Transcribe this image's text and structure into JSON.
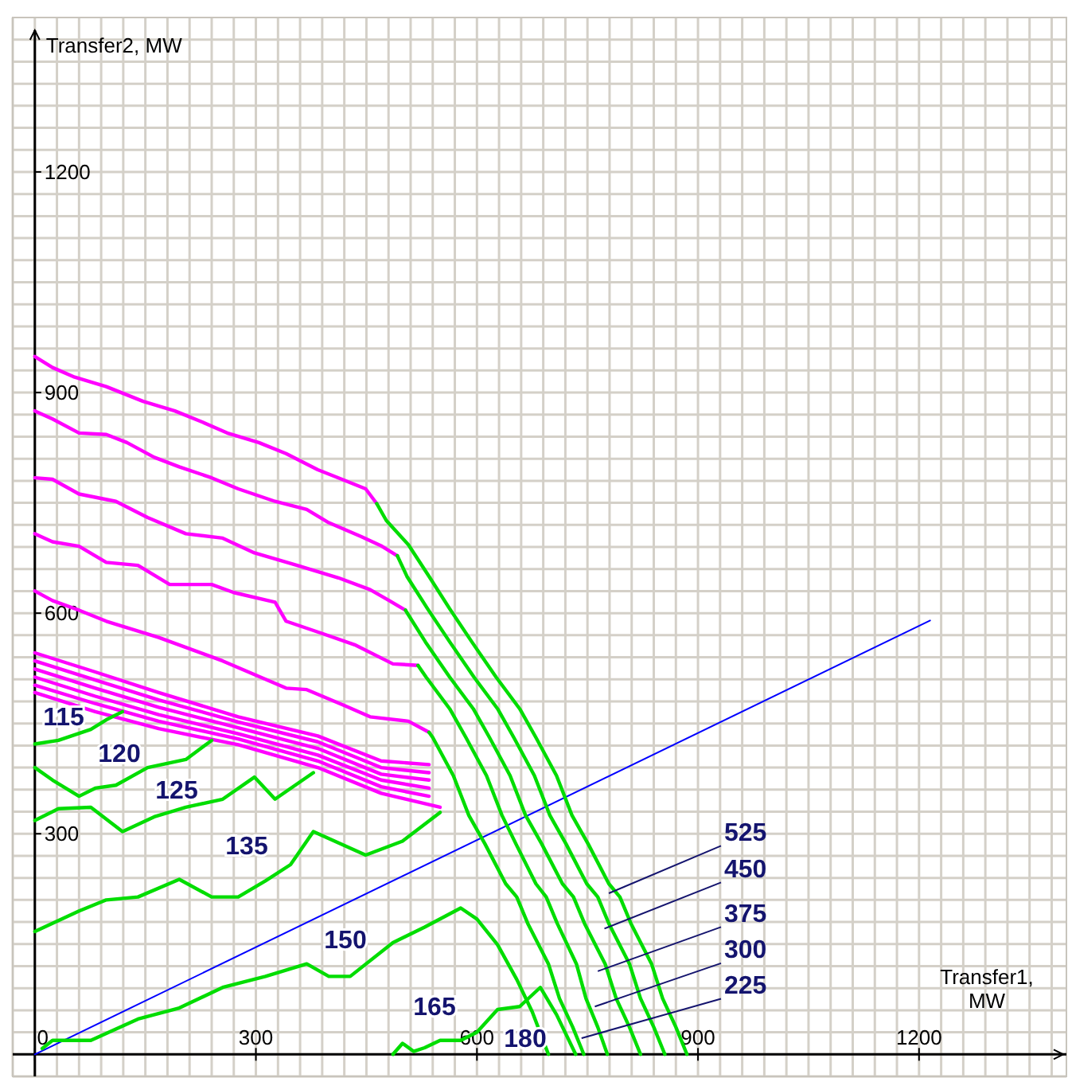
{
  "chart_data": {
    "type": "line",
    "xlabel": "Transfer1, MW",
    "ylabel": "Transfer2, MW",
    "xlim": [
      -30,
      1400
    ],
    "ylim": [
      -30,
      1410
    ],
    "grid": true,
    "xticks": [
      {
        "value": -30,
        "label": null
      },
      0,
      {
        "value": 30,
        "label": null
      },
      {
        "value": 60,
        "label": null
      },
      {
        "value": 90,
        "label": null
      },
      {
        "value": 120,
        "label": null
      },
      {
        "value": 150,
        "label": null
      },
      {
        "value": 180,
        "label": null
      },
      {
        "value": 210,
        "label": null
      },
      {
        "value": 240,
        "label": null
      },
      {
        "value": 270,
        "label": null
      },
      300,
      {
        "value": 330,
        "label": null
      },
      {
        "value": 360,
        "label": null
      },
      {
        "value": 390,
        "label": null
      },
      {
        "value": 420,
        "label": null
      },
      {
        "value": 450,
        "label": null
      },
      {
        "value": 480,
        "label": null
      },
      {
        "value": 510,
        "label": null
      },
      {
        "value": 540,
        "label": null
      },
      {
        "value": 570,
        "label": null
      },
      600,
      {
        "value": 630,
        "label": null
      },
      {
        "value": 660,
        "label": null
      },
      {
        "value": 690,
        "label": null
      },
      {
        "value": 720,
        "label": null
      },
      {
        "value": 750,
        "label": null
      },
      {
        "value": 780,
        "label": null
      },
      {
        "value": 810,
        "label": null
      },
      {
        "value": 840,
        "label": null
      },
      {
        "value": 870,
        "label": null
      },
      900,
      {
        "value": 930,
        "label": null
      },
      {
        "value": 960,
        "label": null
      },
      {
        "value": 990,
        "label": null
      },
      {
        "value": 1020,
        "label": null
      },
      {
        "value": 1050,
        "label": null
      },
      {
        "value": 1080,
        "label": null
      },
      {
        "value": 1110,
        "label": null
      },
      {
        "value": 1140,
        "label": null
      },
      {
        "value": 1170,
        "label": null
      },
      1200,
      {
        "value": 1230,
        "label": null
      },
      {
        "value": 1260,
        "label": null
      },
      {
        "value": 1290,
        "label": null
      },
      {
        "value": 1320,
        "label": null
      },
      {
        "value": 1350,
        "label": null
      },
      {
        "value": 1380,
        "label": null
      }
    ],
    "yticks": [
      {
        "value": -30,
        "label": null
      },
      {
        "value": 0,
        "label": null
      },
      {
        "value": 30,
        "label": null
      },
      {
        "value": 60,
        "label": null
      },
      {
        "value": 90,
        "label": null
      },
      {
        "value": 120,
        "label": null
      },
      {
        "value": 150,
        "label": null
      },
      {
        "value": 180,
        "label": null
      },
      {
        "value": 210,
        "label": null
      },
      {
        "value": 240,
        "label": null
      },
      {
        "value": 270,
        "label": null
      },
      300,
      {
        "value": 330,
        "label": null
      },
      {
        "value": 360,
        "label": null
      },
      {
        "value": 390,
        "label": null
      },
      {
        "value": 420,
        "label": null
      },
      {
        "value": 450,
        "label": null
      },
      {
        "value": 480,
        "label": null
      },
      {
        "value": 510,
        "label": null
      },
      {
        "value": 540,
        "label": null
      },
      {
        "value": 570,
        "label": null
      },
      600,
      {
        "value": 630,
        "label": null
      },
      {
        "value": 660,
        "label": null
      },
      {
        "value": 690,
        "label": null
      },
      {
        "value": 720,
        "label": null
      },
      {
        "value": 750,
        "label": null
      },
      {
        "value": 780,
        "label": null
      },
      {
        "value": 810,
        "label": null
      },
      {
        "value": 840,
        "label": null
      },
      {
        "value": 870,
        "label": null
      },
      900,
      {
        "value": 930,
        "label": null
      },
      {
        "value": 960,
        "label": null
      },
      {
        "value": 990,
        "label": null
      },
      {
        "value": 1020,
        "label": null
      },
      {
        "value": 1050,
        "label": null
      },
      {
        "value": 1080,
        "label": null
      },
      {
        "value": 1110,
        "label": null
      },
      {
        "value": 1140,
        "label": null
      },
      {
        "value": 1170,
        "label": null
      },
      1200,
      {
        "value": 1230,
        "label": null
      },
      {
        "value": 1260,
        "label": null
      },
      {
        "value": 1290,
        "label": null
      },
      {
        "value": 1320,
        "label": null
      },
      {
        "value": 1350,
        "label": null
      },
      {
        "value": 1380,
        "label": null
      }
    ],
    "series": [
      {
        "color": "#0000ff",
        "x": [
          0,
          1215
        ],
        "values": [
          0,
          590
        ]
      },
      {
        "color": "#ff00ff",
        "x": [
          0,
          24,
          54,
          97,
          147,
          190,
          227,
          261,
          304,
          341,
          384,
          412,
          449,
          464
        ],
        "values": [
          949,
          934,
          921,
          908,
          888,
          875,
          860,
          845,
          832,
          817,
          795,
          784,
          769,
          749
        ]
      },
      {
        "color": "#ff00ff",
        "x": [
          0,
          24,
          60,
          97,
          125,
          162,
          196,
          240,
          276,
          326,
          369,
          399,
          443,
          471,
          492
        ],
        "values": [
          875,
          864,
          845,
          843,
          832,
          812,
          799,
          784,
          769,
          752,
          741,
          723,
          704,
          691,
          678
        ]
      },
      {
        "color": "#ff00ff",
        "x": [
          0,
          24,
          60,
          110,
          153,
          205,
          255,
          298,
          356,
          412,
          455,
          481,
          503
        ],
        "values": [
          784,
          782,
          762,
          752,
          730,
          708,
          702,
          682,
          665,
          648,
          632,
          617,
          604
        ]
      },
      {
        "color": "#ff00ff",
        "x": [
          0,
          24,
          60,
          97,
          140,
          183,
          240,
          270,
          326,
          341,
          391,
          434,
          486,
          520
        ],
        "values": [
          708,
          697,
          691,
          669,
          665,
          639,
          639,
          628,
          615,
          589,
          572,
          557,
          531,
          529
        ]
      },
      {
        "color": "#ff00ff",
        "x": [
          0,
          24,
          60,
          97,
          168,
          255,
          341,
          369,
          421,
          455,
          507,
          535
        ],
        "values": [
          630,
          617,
          604,
          589,
          567,
          535,
          498,
          496,
          474,
          459,
          453,
          438
        ]
      },
      {
        "color": "#ff00ff",
        "x": [
          0,
          82,
          168,
          276,
          384,
          470,
          535
        ],
        "values": [
          546,
          520,
          492,
          459,
          433,
          399,
          394
        ]
      },
      {
        "color": "#ff00ff",
        "x": [
          0,
          82,
          168,
          276,
          384,
          470,
          535
        ],
        "values": [
          535,
          509,
          482,
          452,
          425,
          390,
          383
        ]
      },
      {
        "color": "#ff00ff",
        "x": [
          0,
          82,
          168,
          276,
          384,
          470,
          535
        ],
        "values": [
          524,
          498,
          472,
          444,
          416,
          381,
          373
        ]
      },
      {
        "color": "#ff00ff",
        "x": [
          0,
          82,
          168,
          276,
          384,
          470,
          535
        ],
        "values": [
          513,
          487,
          462,
          436,
          407,
          373,
          362
        ]
      },
      {
        "color": "#ff00ff",
        "x": [
          0,
          82,
          168,
          276,
          384,
          470,
          535
        ],
        "values": [
          502,
          477,
          453,
          429,
          399,
          364,
          351
        ]
      },
      {
        "color": "#ff00ff",
        "x": [
          0,
          82,
          168,
          276,
          384,
          470,
          550
        ],
        "values": [
          492,
          466,
          443,
          421,
          390,
          355,
          336
        ]
      },
      {
        "color": "#00dd00",
        "x": [
          464,
          477,
          507,
          535,
          563,
          593,
          626,
          658,
          680,
          708,
          729,
          751,
          779,
          794,
          809,
          837,
          852,
          870,
          885
        ],
        "values": [
          749,
          726,
          693,
          650,
          606,
          561,
          513,
          470,
          431,
          379,
          325,
          286,
          232,
          214,
          178,
          123,
          76,
          37,
          0
        ]
      },
      {
        "color": "#00dd00",
        "x": [
          492,
          505,
          533,
          563,
          596,
          628,
          650,
          678,
          699,
          721,
          749,
          764,
          779,
          807,
          822,
          840,
          855
        ],
        "values": [
          678,
          650,
          606,
          561,
          513,
          470,
          431,
          379,
          325,
          286,
          232,
          214,
          178,
          123,
          76,
          37,
          0
        ]
      },
      {
        "color": "#00dd00",
        "x": [
          503,
          530,
          563,
          595,
          617,
          645,
          666,
          688,
          716,
          731,
          746,
          774,
          789,
          807,
          822
        ],
        "values": [
          604,
          561,
          513,
          470,
          431,
          379,
          325,
          286,
          232,
          214,
          178,
          123,
          76,
          37,
          0
        ]
      },
      {
        "color": "#00dd00",
        "x": [
          520,
          531,
          563,
          585,
          613,
          634,
          653,
          680,
          694,
          709,
          735,
          748,
          764,
          777
        ],
        "values": [
          529,
          513,
          470,
          431,
          379,
          325,
          286,
          232,
          214,
          178,
          123,
          76,
          37,
          0
        ]
      },
      {
        "color": "#00dd00",
        "x": [
          535,
          540,
          568,
          589,
          611,
          639,
          654,
          669,
          697,
          712,
          730,
          745
        ],
        "values": [
          438,
          431,
          379,
          325,
          286,
          232,
          214,
          178,
          123,
          76,
          37,
          0
        ]
      },
      {
        "color": "#00dd00",
        "x": [
          0,
          32,
          76,
          97,
          119
        ],
        "values": [
          422,
          427,
          442,
          455,
          466
        ]
      },
      {
        "color": "#00dd00",
        "x": [
          0,
          24,
          60,
          82,
          110,
          153,
          205,
          240
        ],
        "values": [
          390,
          373,
          351,
          362,
          366,
          390,
          401,
          427
        ]
      },
      {
        "color": "#00dd00",
        "x": [
          0,
          32,
          76,
          119,
          162,
          205,
          255,
          298,
          326,
          378
        ],
        "values": [
          318,
          334,
          336,
          303,
          323,
          336,
          347,
          377,
          347,
          383
        ]
      },
      {
        "color": "#00dd00",
        "x": [
          0,
          60,
          97,
          140,
          196,
          240,
          276,
          313,
          347,
          356,
          378,
          449,
          499,
          550
        ],
        "values": [
          167,
          195,
          210,
          214,
          238,
          214,
          214,
          236,
          258,
          271,
          303,
          271,
          290,
          329
        ]
      },
      {
        "color": "#00dd00",
        "x": [
          10,
          24,
          76,
          140,
          196,
          255,
          313,
          369,
          399,
          428,
          486,
          529,
          578,
          600,
          628,
          654,
          675,
          697
        ],
        "values": [
          8,
          19,
          19,
          48,
          63,
          91,
          106,
          123,
          106,
          106,
          152,
          173,
          199,
          184,
          149,
          102,
          58,
          0
        ]
      },
      {
        "color": "#00dd00",
        "x": [
          486,
          499,
          514,
          529,
          550,
          578,
          600,
          628,
          658,
          686,
          708,
          734
        ],
        "values": [
          0,
          15,
          4,
          9,
          19,
          19,
          30,
          61,
          65,
          91,
          54,
          0
        ]
      }
    ],
    "annotations": [
      "115",
      "120",
      "125",
      "135",
      "150",
      "165",
      "180",
      {
        "text": "525",
        "x": 779,
        "y": 219
      },
      {
        "text": "450",
        "x": 773,
        "y": 171
      },
      {
        "text": "375",
        "x": 764,
        "y": 113
      },
      {
        "text": "300",
        "x": 760,
        "y": 65
      },
      {
        "text": "225",
        "x": 742,
        "y": 22
      }
    ]
  }
}
